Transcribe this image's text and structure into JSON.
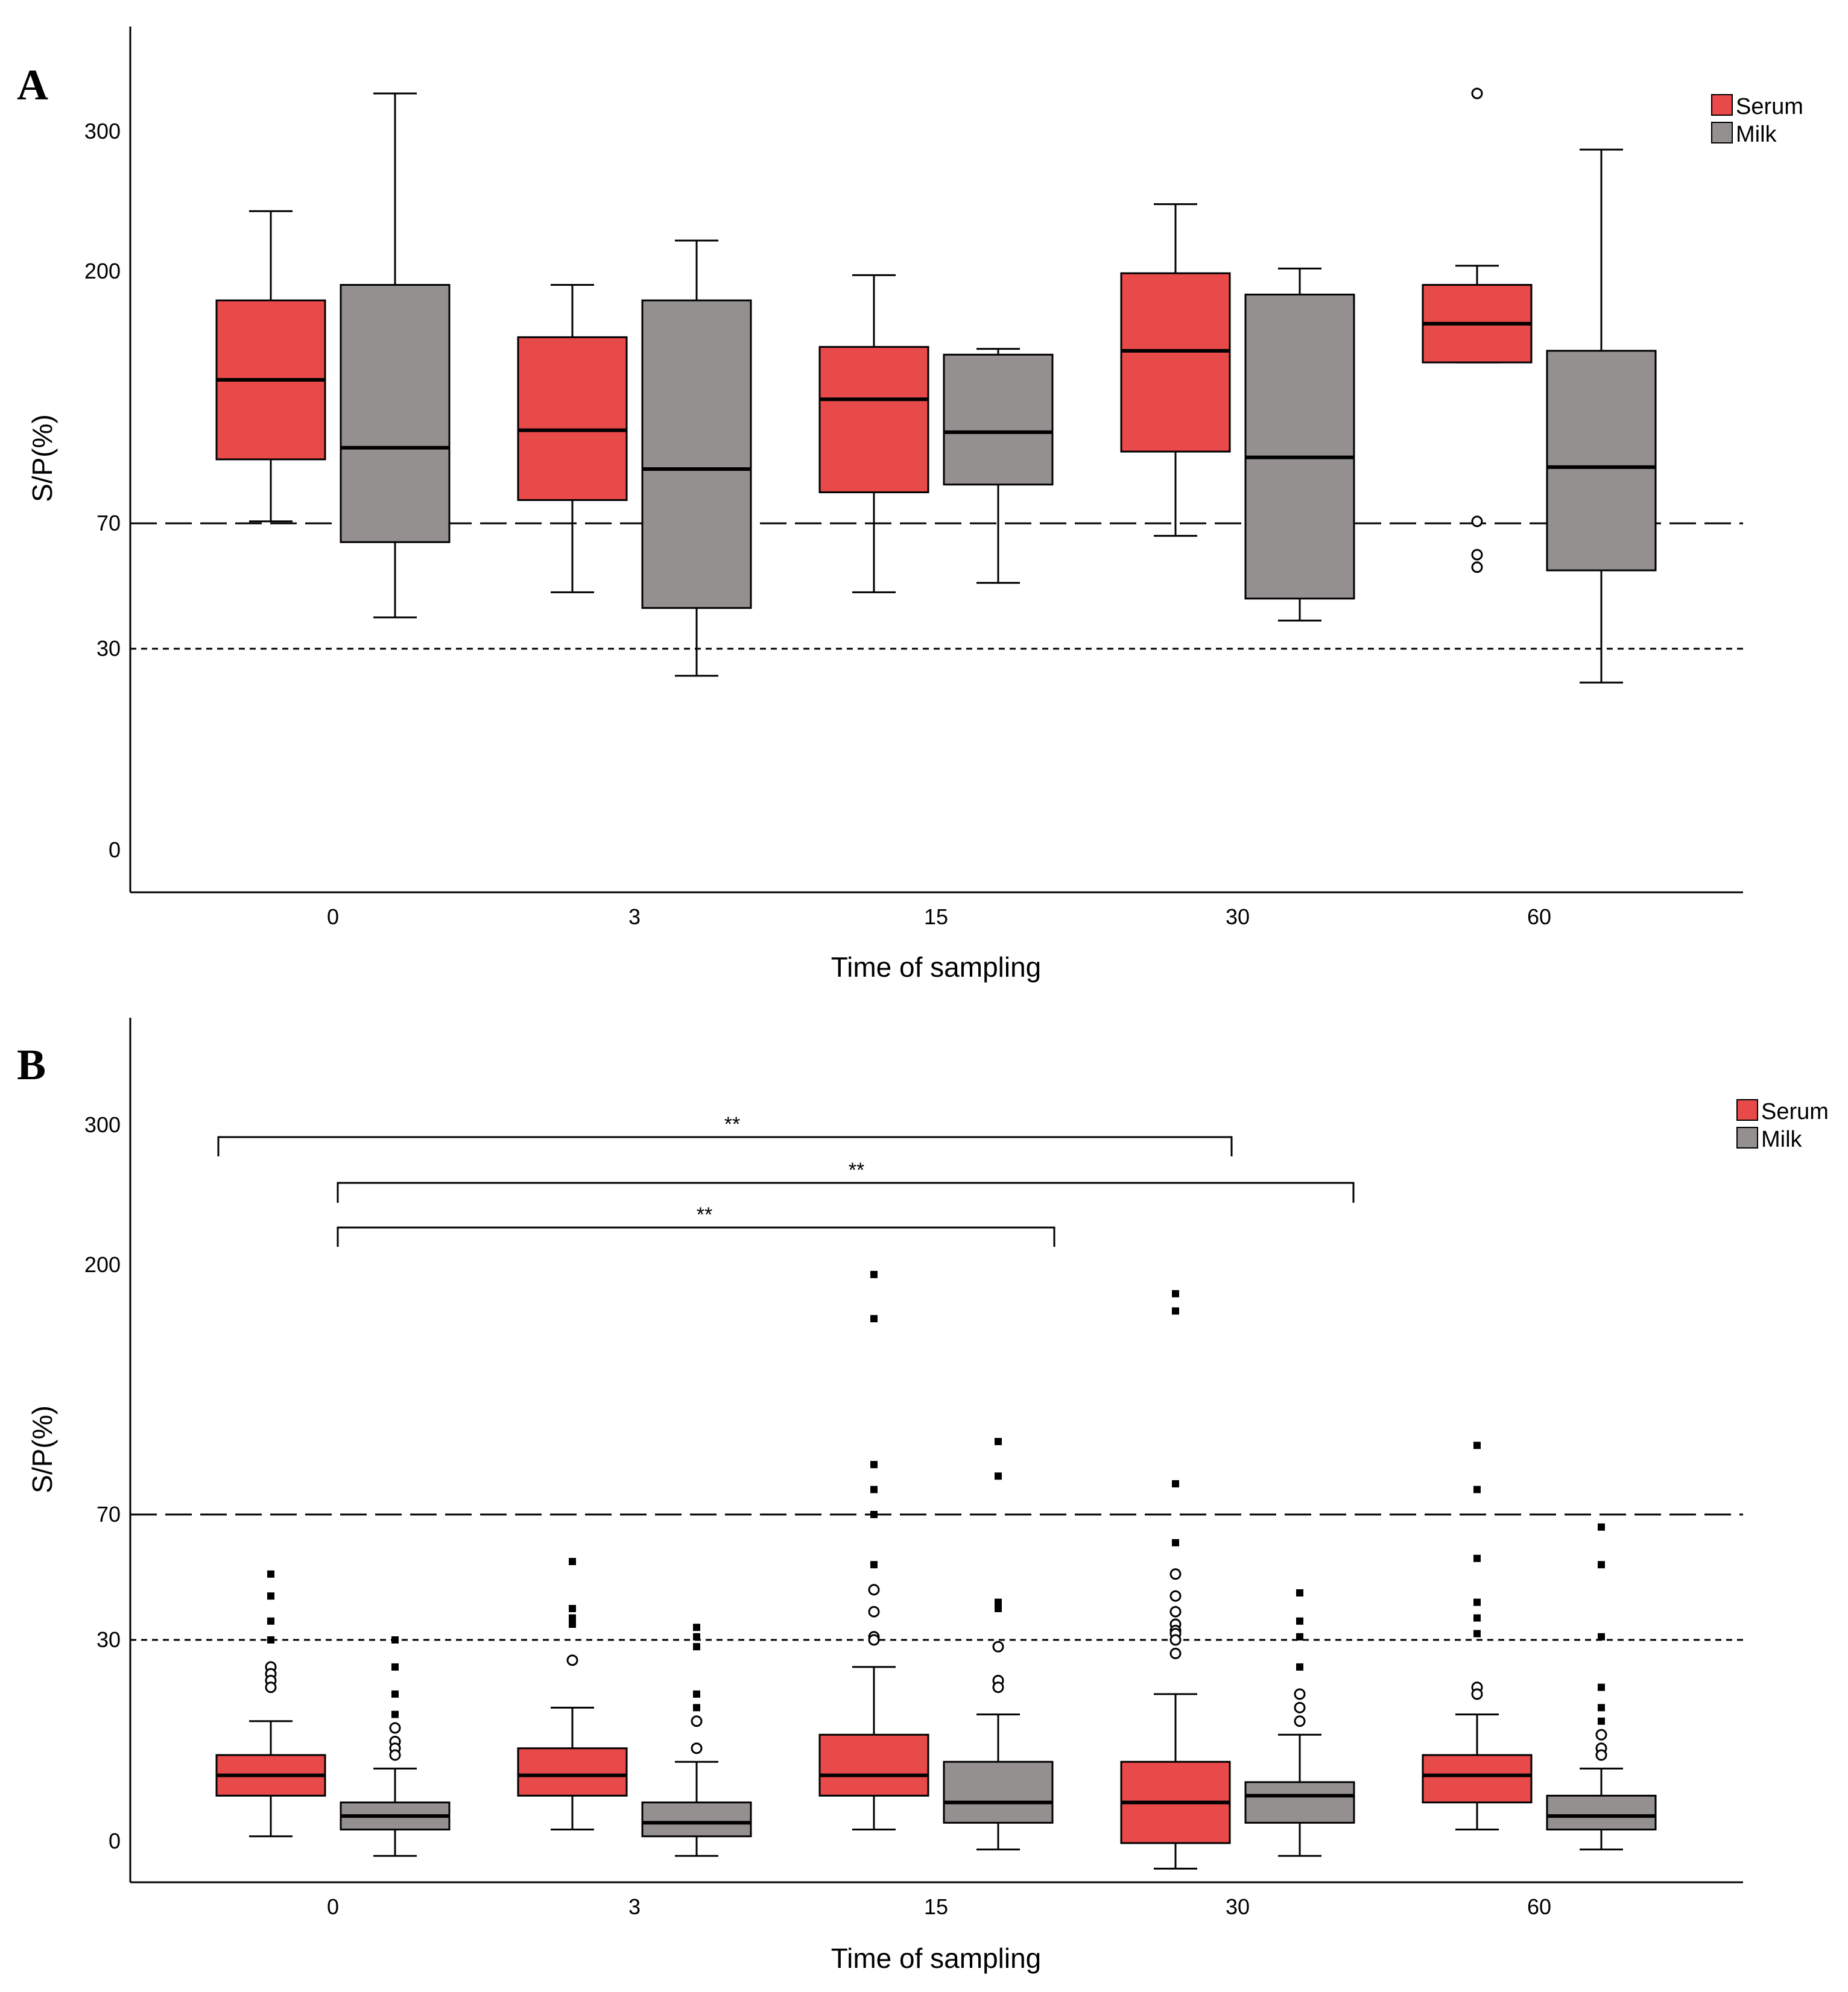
{
  "colors": {
    "serum": "#e84a4a",
    "milk": "#949090"
  },
  "chart_data": [
    {
      "type": "box",
      "panel_label": "A",
      "xlabel": "Time of sampling",
      "ylabel": "S/P(%)",
      "categories": [
        "0",
        "3",
        "15",
        "30",
        "60"
      ],
      "y_ticks": [
        "300",
        "200",
        "70",
        "30",
        "0"
      ],
      "reference_lines": [
        {
          "value": 70,
          "style": "long-dash"
        },
        {
          "value": 30,
          "style": "short-dash"
        }
      ],
      "legend": {
        "placement": "top-right",
        "entries": [
          "Serum",
          "Milk"
        ]
      },
      "series": [
        {
          "name": "Serum",
          "boxes": [
            {
              "min": 71,
              "q1": 103,
              "median": 144,
              "q3": 185,
              "max": 243
            },
            {
              "min": 48,
              "q1": 82,
              "median": 118,
              "q3": 166,
              "max": 193
            },
            {
              "min": 48,
              "q1": 86,
              "median": 134,
              "q3": 161,
              "max": 198
            },
            {
              "min": 66,
              "q1": 107,
              "median": 159,
              "q3": 199,
              "max": 248
            },
            {
              "min": 153,
              "q1": 153,
              "median": 173,
              "q3": 193,
              "max": 204
            }
          ],
          "outliers": [
            [],
            [],
            [],
            [],
            [
              {
                "value": 330,
                "style": "open"
              },
              {
                "value": 71,
                "style": "open"
              },
              {
                "value": 60,
                "style": "open"
              },
              {
                "value": 56,
                "style": "open"
              }
            ]
          ]
        },
        {
          "name": "Milk",
          "boxes": [
            {
              "min": 40,
              "q1": 64,
              "median": 109,
              "q3": 193,
              "max": 330
            },
            {
              "min": 26,
              "q1": 43,
              "median": 98,
              "q3": 185,
              "max": 222
            },
            {
              "min": 51,
              "q1": 90,
              "median": 117,
              "q3": 157,
              "max": 160
            },
            {
              "min": 39,
              "q1": 46,
              "median": 104,
              "q3": 188,
              "max": 202
            },
            {
              "min": 25,
              "q1": 55,
              "median": 99,
              "q3": 159,
              "max": 287
            }
          ],
          "outliers": [
            [],
            [],
            [],
            [],
            []
          ]
        }
      ]
    },
    {
      "type": "box",
      "panel_label": "B",
      "xlabel": "Time of sampling",
      "ylabel": "S/P(%)",
      "categories": [
        "0",
        "3",
        "15",
        "30",
        "60"
      ],
      "y_ticks": [
        "300",
        "200",
        "70",
        "30",
        "0"
      ],
      "reference_lines": [
        {
          "value": 70,
          "style": "long-dash"
        },
        {
          "value": 30,
          "style": "short-dash"
        }
      ],
      "legend": {
        "placement": "top-right",
        "entries": [
          "Serum",
          "Milk"
        ]
      },
      "significance": [
        {
          "from": "0 Serum",
          "to": "30 Serum",
          "label": "**"
        },
        {
          "from": "0 Milk",
          "to": "30 Milk",
          "label": "**"
        },
        {
          "from": "0 Milk",
          "to": "15 Milk",
          "label": "**"
        }
      ],
      "series": [
        {
          "name": "Serum",
          "boxes": [
            {
              "min": 1,
              "q1": 7,
              "median": 10,
              "q3": 13,
              "max": 18
            },
            {
              "min": 2,
              "q1": 7,
              "median": 10,
              "q3": 14,
              "max": 20
            },
            {
              "min": 2,
              "q1": 7,
              "median": 10,
              "q3": 16,
              "max": 26
            },
            {
              "min": -4,
              "q1": 0,
              "median": 6,
              "q3": 12,
              "max": 22
            },
            {
              "min": 2,
              "q1": 6,
              "median": 10,
              "q3": 13,
              "max": 19
            }
          ],
          "outliers": [
            [
              {
                "value": 51,
                "style": "filled"
              },
              {
                "value": 44,
                "style": "filled"
              },
              {
                "value": 36,
                "style": "filled"
              },
              {
                "value": 30,
                "style": "filled"
              },
              {
                "value": 26,
                "style": "open"
              },
              {
                "value": 25,
                "style": "open"
              },
              {
                "value": 24,
                "style": "open"
              },
              {
                "value": 23,
                "style": "open"
              }
            ],
            [
              {
                "value": 55,
                "style": "filled"
              },
              {
                "value": 40,
                "style": "filled"
              },
              {
                "value": 37,
                "style": "filled"
              },
              {
                "value": 35,
                "style": "filled"
              },
              {
                "value": 27,
                "style": "open"
              }
            ],
            [
              {
                "value": 195,
                "style": "filled"
              },
              {
                "value": 172,
                "style": "filled"
              },
              {
                "value": 96,
                "style": "filled"
              },
              {
                "value": 83,
                "style": "filled"
              },
              {
                "value": 70,
                "style": "filled"
              },
              {
                "value": 54,
                "style": "filled"
              },
              {
                "value": 46,
                "style": "open"
              },
              {
                "value": 39,
                "style": "open"
              },
              {
                "value": 31,
                "style": "open"
              },
              {
                "value": 30,
                "style": "open"
              }
            ],
            [
              {
                "value": 185,
                "style": "filled"
              },
              {
                "value": 176,
                "style": "filled"
              },
              {
                "value": 86,
                "style": "filled"
              },
              {
                "value": 61,
                "style": "filled"
              },
              {
                "value": 51,
                "style": "open"
              },
              {
                "value": 44,
                "style": "open"
              },
              {
                "value": 39,
                "style": "open"
              },
              {
                "value": 35,
                "style": "open"
              },
              {
                "value": 33,
                "style": "open"
              },
              {
                "value": 32,
                "style": "open"
              },
              {
                "value": 30,
                "style": "open"
              },
              {
                "value": 28,
                "style": "open"
              }
            ],
            [
              {
                "value": 106,
                "style": "filled"
              },
              {
                "value": 83,
                "style": "filled"
              },
              {
                "value": 56,
                "style": "filled"
              },
              {
                "value": 42,
                "style": "filled"
              },
              {
                "value": 37,
                "style": "filled"
              },
              {
                "value": 32,
                "style": "filled"
              },
              {
                "value": 23,
                "style": "open"
              },
              {
                "value": 22,
                "style": "open"
              }
            ]
          ]
        },
        {
          "name": "Milk",
          "boxes": [
            {
              "min": -2,
              "q1": 2,
              "median": 4,
              "q3": 6,
              "max": 11
            },
            {
              "min": -2,
              "q1": 1,
              "median": 3,
              "q3": 6,
              "max": 12
            },
            {
              "min": -1,
              "q1": 3,
              "median": 6,
              "q3": 12,
              "max": 19
            },
            {
              "min": -2,
              "q1": 3,
              "median": 7,
              "q3": 9,
              "max": 16
            },
            {
              "min": -1,
              "q1": 2,
              "median": 4,
              "q3": 7,
              "max": 11
            }
          ],
          "outliers": [
            [
              {
                "value": 30,
                "style": "filled"
              },
              {
                "value": 26,
                "style": "filled"
              },
              {
                "value": 22,
                "style": "filled"
              },
              {
                "value": 19,
                "style": "filled"
              },
              {
                "value": 17,
                "style": "open"
              },
              {
                "value": 15,
                "style": "open"
              },
              {
                "value": 14,
                "style": "open"
              },
              {
                "value": 13,
                "style": "open"
              }
            ],
            [
              {
                "value": 34,
                "style": "filled"
              },
              {
                "value": 31,
                "style": "filled"
              },
              {
                "value": 29,
                "style": "filled"
              },
              {
                "value": 22,
                "style": "filled"
              },
              {
                "value": 20,
                "style": "filled"
              },
              {
                "value": 18,
                "style": "open"
              },
              {
                "value": 14,
                "style": "open"
              }
            ],
            [
              {
                "value": 108,
                "style": "filled"
              },
              {
                "value": 90,
                "style": "filled"
              },
              {
                "value": 42,
                "style": "filled"
              },
              {
                "value": 40,
                "style": "filled"
              },
              {
                "value": 29,
                "style": "open"
              },
              {
                "value": 24,
                "style": "open"
              },
              {
                "value": 23,
                "style": "open"
              }
            ],
            [
              {
                "value": 45,
                "style": "filled"
              },
              {
                "value": 36,
                "style": "filled"
              },
              {
                "value": 31,
                "style": "filled"
              },
              {
                "value": 26,
                "style": "filled"
              },
              {
                "value": 22,
                "style": "open"
              },
              {
                "value": 20,
                "style": "open"
              },
              {
                "value": 18,
                "style": "open"
              }
            ],
            [
              {
                "value": 66,
                "style": "filled"
              },
              {
                "value": 54,
                "style": "filled"
              },
              {
                "value": 31,
                "style": "filled"
              },
              {
                "value": 23,
                "style": "filled"
              },
              {
                "value": 20,
                "style": "filled"
              },
              {
                "value": 18,
                "style": "filled"
              },
              {
                "value": 16,
                "style": "open"
              },
              {
                "value": 14,
                "style": "open"
              },
              {
                "value": 13,
                "style": "open"
              }
            ]
          ]
        }
      ]
    }
  ]
}
